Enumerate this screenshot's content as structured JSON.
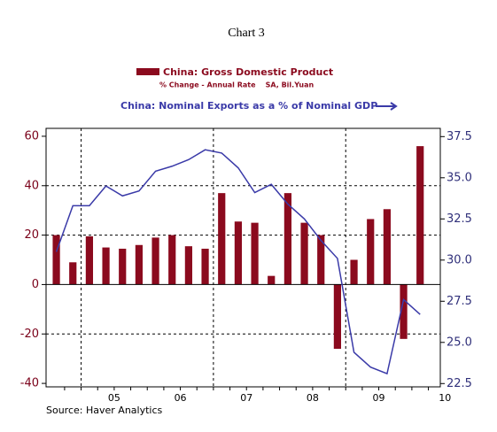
{
  "chart_data": {
    "type": "bar_line",
    "title": "Chart 3",
    "series": [
      {
        "name": "China: Gross Domestic Product",
        "subtitle": "% Change - Annual Rate    SA, Bil.Yuan",
        "color": "#8b0a1e",
        "type": "bar",
        "values": [
          20,
          9,
          19.5,
          15,
          14.5,
          16,
          19,
          20,
          15.5,
          14.5,
          37,
          25.5,
          25,
          3.5,
          37,
          25,
          20,
          -26,
          10,
          26.5,
          30.5,
          -22,
          56
        ]
      },
      {
        "name": "China: Nominal Exports as a % of Nominal GDP",
        "color": "#3a3aa8",
        "type": "line",
        "axis": "y2",
        "values": [
          30.5,
          33.3,
          33.3,
          34.5,
          33.9,
          34.2,
          35.4,
          35.7,
          36.1,
          36.7,
          36.5,
          35.6,
          34.1,
          34.6,
          33.4,
          32.5,
          31.2,
          30.1,
          24.4,
          23.5,
          23.1,
          27.6,
          26.7
        ]
      }
    ],
    "x": [
      2004.625,
      2004.875,
      2005.125,
      2005.375,
      2005.625,
      2005.875,
      2006.125,
      2006.375,
      2006.625,
      2006.875,
      2007.125,
      2007.375,
      2007.625,
      2007.875,
      2008.125,
      2008.375,
      2008.625,
      2008.875,
      2009.125,
      2009.375,
      2009.625,
      2009.875,
      2010.125
    ],
    "xlim": [
      2004.47,
      2010.43
    ],
    "xticks": [
      {
        "value": 2005.5,
        "label": "05"
      },
      {
        "value": 2006.5,
        "label": "06"
      },
      {
        "value": 2007.5,
        "label": "07"
      },
      {
        "value": 2008.5,
        "label": "08"
      },
      {
        "value": 2009.5,
        "label": "09"
      },
      {
        "value": 2010.5,
        "label": "10"
      }
    ],
    "xgrid": [
      2005,
      2007,
      2009
    ],
    "ylim": [
      -41.4,
      63.2
    ],
    "yticks": [
      -40,
      -20,
      0,
      20,
      40,
      60
    ],
    "ygrid": [
      -20,
      20,
      40
    ],
    "y2lim": [
      22.3,
      38.0
    ],
    "y2ticks": [
      {
        "value": 22.5,
        "label": "22.5"
      },
      {
        "value": 25,
        "label": "25.0"
      },
      {
        "value": 27.5,
        "label": "27.5"
      },
      {
        "value": 30,
        "label": "30.0"
      },
      {
        "value": 32.5,
        "label": "32.5"
      },
      {
        "value": 35,
        "label": "35.0"
      },
      {
        "value": 37.5,
        "label": "37.5"
      }
    ],
    "source": "Source: Haver Analytics"
  }
}
